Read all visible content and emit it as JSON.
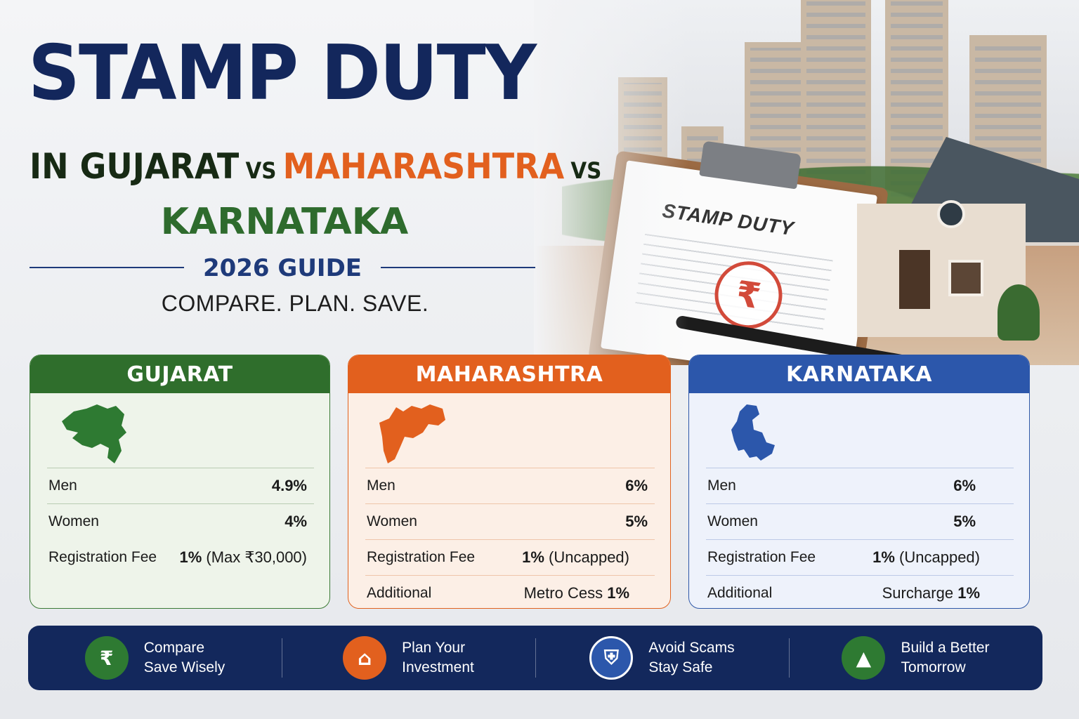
{
  "headline": {
    "line1": "STAMP DUTY",
    "line2_part1": "IN GUJARAT",
    "vs": "VS",
    "line2_part2": "MAHARASHTRA",
    "line3": "KARNATAKA",
    "guide": "2026 GUIDE",
    "tagline": "COMPARE. PLAN. SAVE."
  },
  "hero": {
    "document_title": "STAMP DUTY",
    "stamp_symbol": "₹"
  },
  "colors": {
    "navy": "#13285c",
    "gujarat_green": "#2f6e2c",
    "maharashtra_orange": "#e2601e",
    "karnataka_blue": "#2c57ab"
  },
  "cards": [
    {
      "state": "GUJARAT",
      "map_icon": "gujarat-map-icon",
      "rows": [
        {
          "label": "Men",
          "value": "4.9%"
        },
        {
          "label": "Women",
          "value": "4%"
        },
        {
          "label": "Registration Fee",
          "value_bold": "1%",
          "value_rest": " (Max ₹30,000)"
        }
      ]
    },
    {
      "state": "MAHARASHTRA",
      "map_icon": "maharashtra-map-icon",
      "rows": [
        {
          "label": "Men",
          "value": "6%"
        },
        {
          "label": "Women",
          "value": "5%"
        },
        {
          "label": "Registration Fee",
          "value_bold": "1%",
          "value_rest": " (Uncapped)"
        },
        {
          "label": "Additional",
          "value_rest": "Metro Cess ",
          "value_bold": "1%"
        }
      ]
    },
    {
      "state": "KARNATAKA",
      "map_icon": "karnataka-map-icon",
      "rows": [
        {
          "label": "Men",
          "value": "6%"
        },
        {
          "label": "Women",
          "value": "5%"
        },
        {
          "label": "Registration Fee",
          "value_bold": "1%",
          "value_rest": " (Uncapped)"
        },
        {
          "label": "Additional",
          "value_rest": "Surcharge ",
          "value_bold": "1%"
        }
      ]
    }
  ],
  "features": [
    {
      "icon": "money-bag-icon",
      "glyph": "₹",
      "line1": "Compare",
      "line2": "Save Wisely",
      "color": "#2e7a32"
    },
    {
      "icon": "house-icon",
      "glyph": "⌂",
      "line1": "Plan Your",
      "line2": "Investment",
      "color": "#e2601e"
    },
    {
      "icon": "shield-icon",
      "glyph": "⛨",
      "line1": "Avoid Scams",
      "line2": "Stay Safe",
      "color": "#2c57ab"
    },
    {
      "icon": "growth-chart-icon",
      "glyph": "▲",
      "line1": "Build a Better",
      "line2": "Tomorrow",
      "color": "#2e7a32"
    }
  ]
}
